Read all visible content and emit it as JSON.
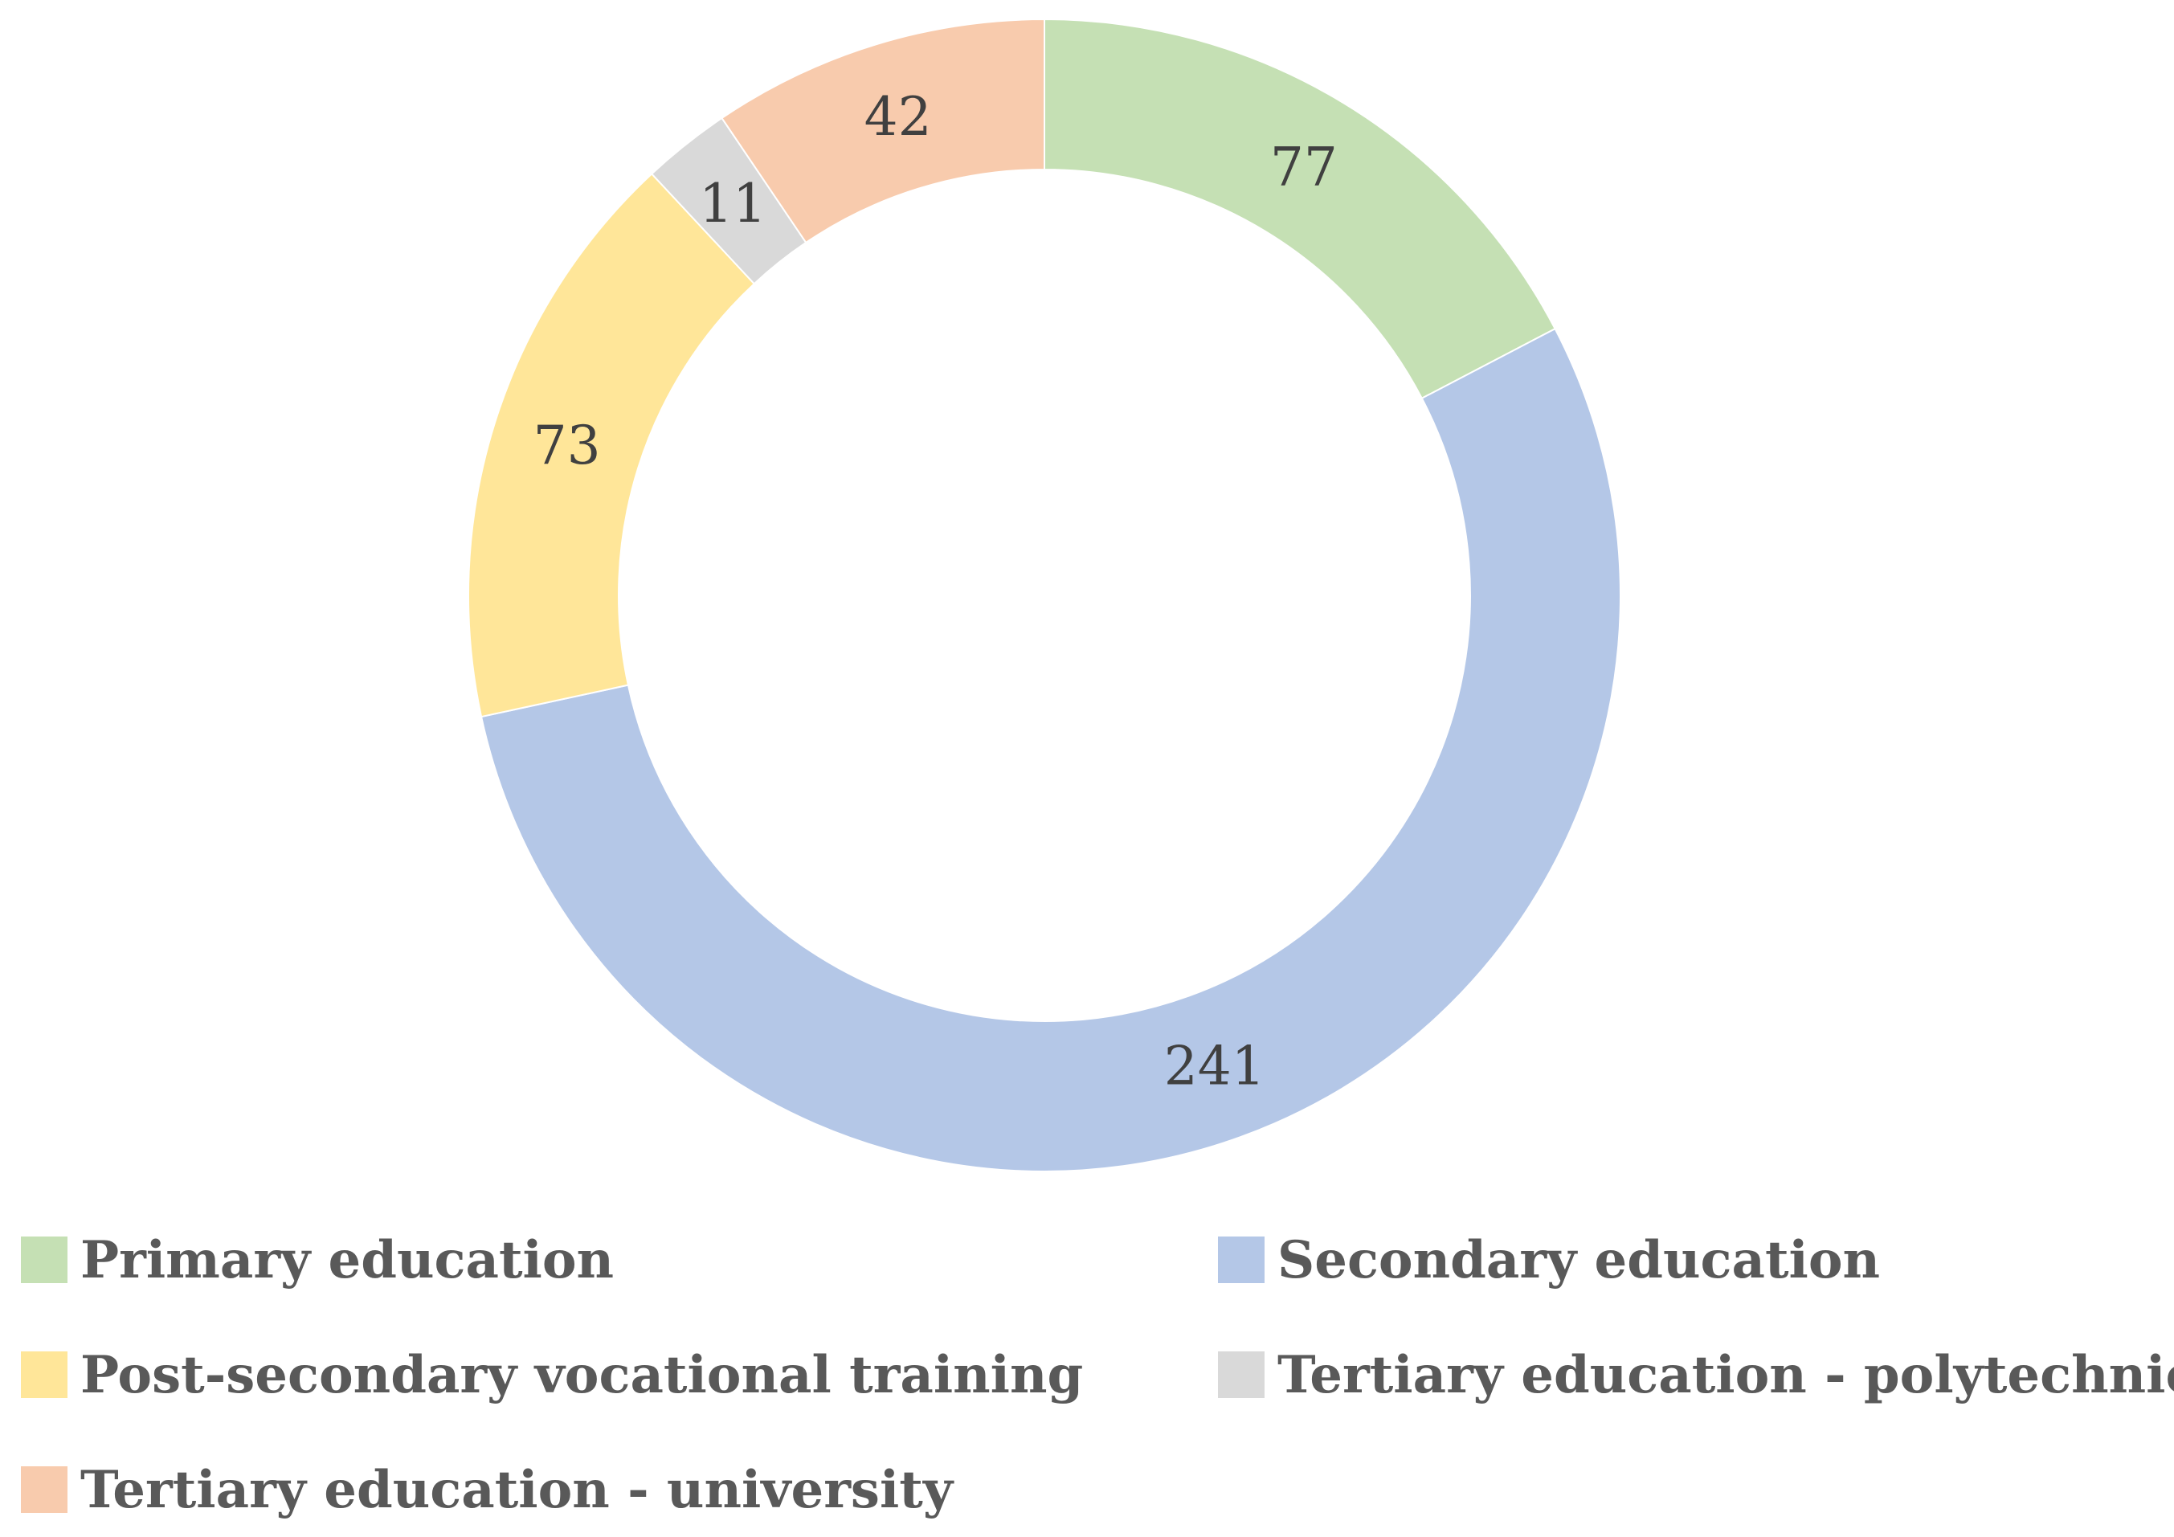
{
  "chart_data": {
    "type": "pie",
    "donut": true,
    "title": "",
    "categories": [
      "Primary education",
      "Secondary education",
      "Post-secondary vocational training",
      "Tertiary education - polytechnic",
      "Tertiary education - university"
    ],
    "values": [
      77,
      241,
      73,
      11,
      42
    ],
    "data_labels": [
      "77",
      "241",
      "73",
      "11",
      "42"
    ],
    "colors": [
      "#C5E0B4",
      "#B4C7E7",
      "#FFE699",
      "#D9D9D9",
      "#F8CBAD"
    ],
    "start_angle_deg": 0,
    "direction": "clockwise",
    "legend_position": "bottom"
  }
}
